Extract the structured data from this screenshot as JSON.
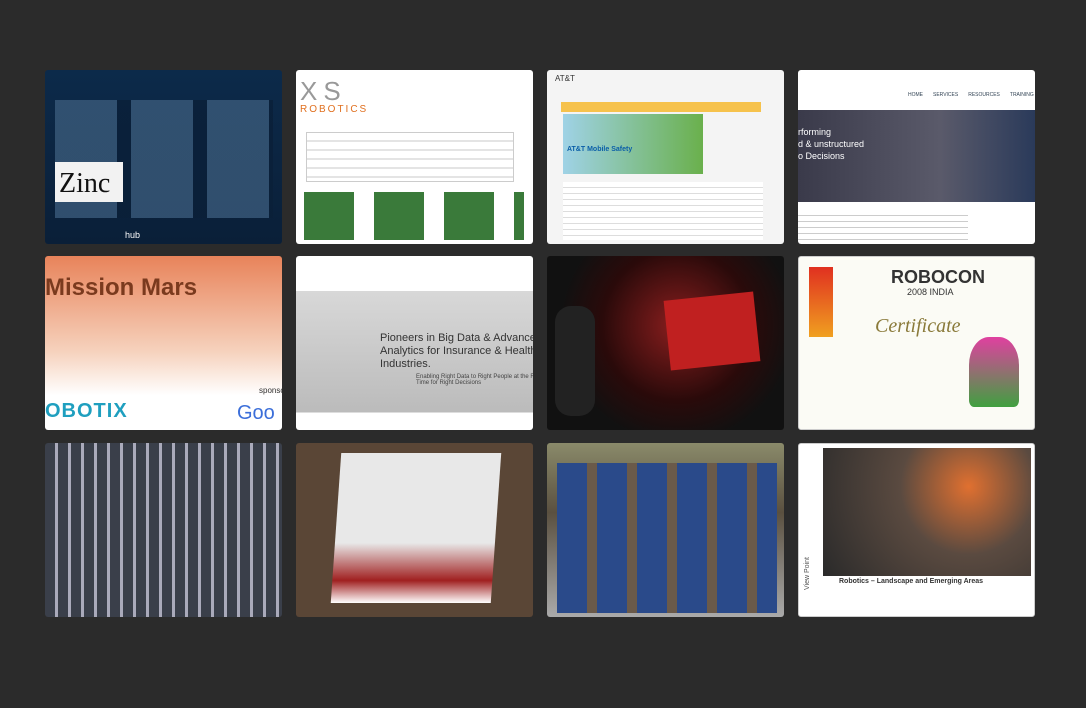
{
  "tiles": {
    "media_portal": {
      "logo": "Zinc",
      "footer": "hub"
    },
    "xs_robotics": {
      "logo": "XS",
      "tagline": "ROBOTICS"
    },
    "att": {
      "brand": "AT&T",
      "banner": "AT&T Mobile Safety"
    },
    "analytics": {
      "menu": [
        "HOME",
        "SERVICES",
        "RESOURCES",
        "TRAINING"
      ],
      "headline": [
        "rforming",
        "d & unstructured",
        "o Decisions"
      ]
    },
    "mission_mars": {
      "title": "Mission Mars",
      "logo": "OBOTIX",
      "sponsor_label": "sponsor",
      "sponsor": "Goo"
    },
    "big_data": {
      "headline": "Pioneers in Big Data & Advanced Analytics for Insurance & Health Industries.",
      "sub": "Enabling Right Data to Right People at the Right Time for Right Decisions"
    },
    "robocon": {
      "title": "ROBOCON",
      "year": "2008 INDIA",
      "heading": "Certificate"
    },
    "robotics_slide": {
      "brand": "View Point",
      "title": "Robotics – Landscape and Emerging Areas"
    }
  }
}
